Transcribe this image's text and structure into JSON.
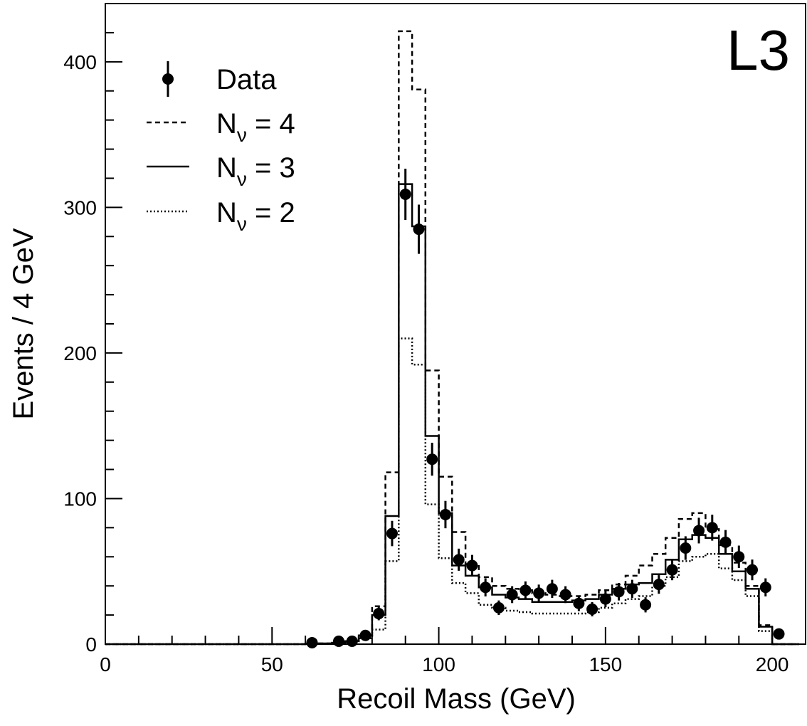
{
  "chart_data": {
    "type": "histogram",
    "experiment_label": "L3",
    "xlabel": "Recoil Mass (GeV)",
    "ylabel": "Events / 4 GeV",
    "xlim": [
      0,
      210
    ],
    "ylim": [
      0,
      440
    ],
    "x_major_ticks": [
      0,
      50,
      100,
      150,
      200
    ],
    "x_minor_step": 10,
    "y_major_ticks": [
      0,
      100,
      200,
      300,
      400
    ],
    "y_minor_step": 20,
    "bin_width": 4,
    "bin_edges_start": 0,
    "grid": false,
    "legend": {
      "position": "top-left",
      "entries": [
        {
          "key": "data",
          "text": "Data",
          "sub": "",
          "rest": ""
        },
        {
          "key": "nnu4",
          "text": "N",
          "sub": "ν",
          "rest": " = 4"
        },
        {
          "key": "nnu3",
          "text": "N",
          "sub": "ν",
          "rest": " = 3"
        },
        {
          "key": "nnu2",
          "text": "N",
          "sub": "ν",
          "rest": " = 2"
        }
      ]
    },
    "series": [
      {
        "key": "nnu4",
        "style": "dashed",
        "values": [
          0,
          0,
          0,
          0,
          0,
          0,
          0,
          0,
          0,
          0,
          0,
          0,
          0,
          0,
          0,
          0.3,
          0.5,
          1,
          2,
          6,
          26,
          118,
          421,
          381,
          188,
          115,
          77,
          55,
          46,
          40,
          38,
          37,
          35,
          34,
          33,
          33,
          34,
          37,
          41,
          47,
          54,
          62,
          73,
          86,
          90,
          79,
          68,
          56,
          40,
          13,
          0,
          0
        ]
      },
      {
        "key": "nnu3",
        "style": "solid",
        "values": [
          0,
          0,
          0,
          0,
          0,
          0,
          0,
          0,
          0,
          0,
          0,
          0,
          0,
          0,
          0,
          0.3,
          0.5,
          1,
          2,
          6,
          20,
          88,
          316,
          287,
          143,
          90,
          54,
          47,
          39,
          34,
          32,
          31,
          29,
          29,
          29,
          30,
          31,
          34,
          38,
          41,
          42,
          48,
          58,
          72,
          75,
          73,
          62,
          50,
          38,
          12,
          0,
          0
        ]
      },
      {
        "key": "nnu2",
        "style": "dotted",
        "values": [
          0,
          0,
          0,
          0,
          0,
          0,
          0,
          0,
          0,
          0,
          0,
          0,
          0,
          0,
          0,
          0.2,
          0.4,
          0.8,
          1.5,
          4,
          10,
          57,
          210,
          192,
          96,
          59,
          42,
          35,
          27,
          25,
          23,
          22,
          21,
          21,
          21,
          21,
          22,
          25,
          28,
          31,
          33,
          40,
          46,
          57,
          60,
          62,
          52,
          44,
          33,
          9,
          0,
          0
        ]
      }
    ],
    "data_points": {
      "key": "data",
      "x": [
        62,
        70,
        74,
        78,
        82,
        86,
        90,
        94,
        98,
        102,
        106,
        110,
        114,
        118,
        122,
        126,
        130,
        134,
        138,
        142,
        146,
        150,
        154,
        158,
        162,
        166,
        170,
        174,
        178,
        182,
        186,
        190,
        194,
        198,
        202
      ],
      "y": [
        1,
        2,
        2,
        6,
        21,
        76,
        309,
        285,
        127,
        89,
        58,
        54,
        39,
        25,
        34,
        37,
        35,
        38,
        34,
        28,
        24,
        31,
        36,
        38,
        27,
        41,
        51,
        66,
        78,
        80,
        70,
        60,
        51,
        39,
        7
      ],
      "err": [
        1,
        1.4,
        1.4,
        2.4,
        4.6,
        8.7,
        17.6,
        16.9,
        11.3,
        9.4,
        7.6,
        7.3,
        6.2,
        5,
        5.8,
        6.1,
        5.9,
        6.2,
        5.8,
        5.3,
        4.9,
        5.6,
        6,
        6.2,
        5.2,
        6.4,
        7.1,
        8.1,
        8.8,
        8.9,
        8.4,
        7.7,
        7.1,
        6.2,
        2.6
      ]
    }
  }
}
